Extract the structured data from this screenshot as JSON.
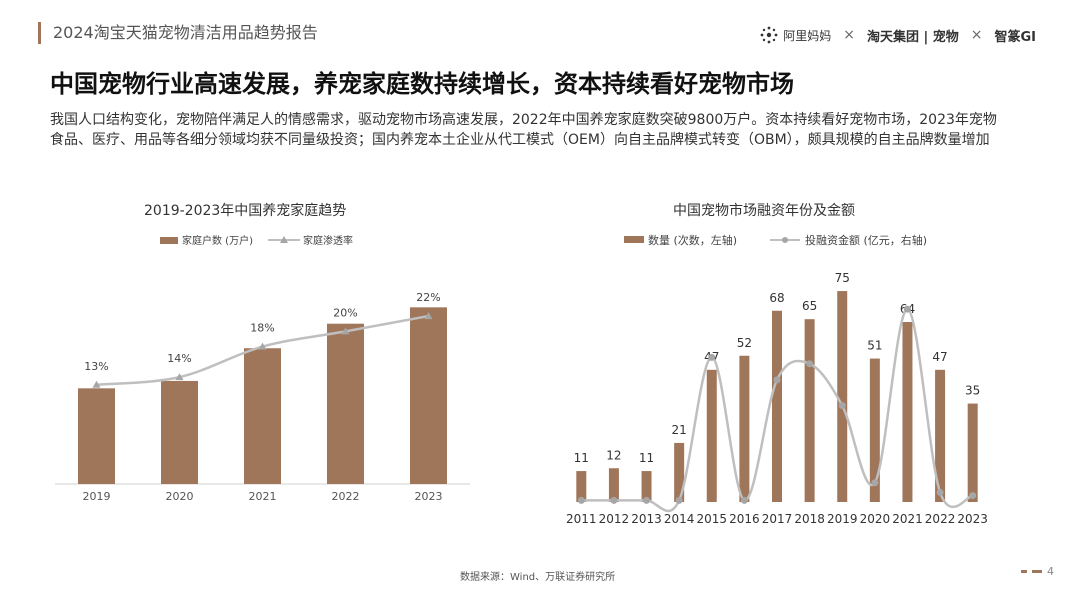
{
  "header": {
    "report_title": "2024淘宝天猫宠物清洁用品趋势报告",
    "logos": [
      "阿里妈妈",
      "×",
      "淘天集团 | 宠物",
      "×",
      "智篆GI"
    ]
  },
  "headline": "中国宠物行业高速发展，养宠家庭数持续增长，资本持续看好宠物市场",
  "intro": "我国人口结构变化，宠物陪伴满足人的情感需求，驱动宠物市场高速发展，2022年中国养宠家庭数突破9800万户。资本持续看好宠物市场，2023年宠物食品、医疗、用品等各细分领域均获不同量级投资；国内养宠本土企业从代工模式（OEM）向自主品牌模式转变（OBM），颇具规模的自主品牌数量增加",
  "colors": {
    "bar": "#a0765a",
    "line": "#bfbfbf",
    "marker": "#a6a6a6",
    "accent": "#a0765a"
  },
  "chart_data": [
    {
      "type": "bar",
      "title": "2019-2023年中国养宠家庭趋势",
      "legend_position": "top",
      "categories": [
        "2019",
        "2020",
        "2021",
        "2022",
        "2023"
      ],
      "series": [
        {
          "name": "家庭户数 (万户)",
          "type": "bar",
          "values": [
            5850,
            6300,
            8300,
            9800,
            10800
          ]
        },
        {
          "name": "家庭渗透率",
          "type": "line",
          "values": [
            13,
            14,
            18,
            20,
            22
          ],
          "labels": [
            "13%",
            "14%",
            "18%",
            "20%",
            "22%"
          ]
        }
      ],
      "ylim_bar": [
        0,
        14000
      ],
      "ylim_line": [
        0,
        30
      ],
      "grid": false
    },
    {
      "type": "bar",
      "title": "中国宠物市场融资年份及金额",
      "legend_position": "top",
      "categories": [
        "2011",
        "2012",
        "2013",
        "2014",
        "2015",
        "2016",
        "2017",
        "2018",
        "2019",
        "2020",
        "2021",
        "2022",
        "2023"
      ],
      "series": [
        {
          "name": "数量 (次数，左轴)",
          "type": "bar",
          "values": [
            11,
            12,
            11,
            21,
            47,
            52,
            68,
            65,
            75,
            51,
            64,
            47,
            35
          ]
        },
        {
          "name": "投融资金额 (亿元，右轴)",
          "type": "line",
          "values": [
            0.5,
            0.5,
            0.5,
            0.5,
            45,
            0.5,
            38,
            43,
            30,
            6,
            60,
            3,
            2
          ]
        }
      ],
      "ylim_left": [
        0,
        80
      ],
      "ylim_right": [
        0,
        70
      ],
      "grid": false
    }
  ],
  "footer": {
    "source": "数据来源：Wind、万联证券研究所",
    "page": "4"
  }
}
